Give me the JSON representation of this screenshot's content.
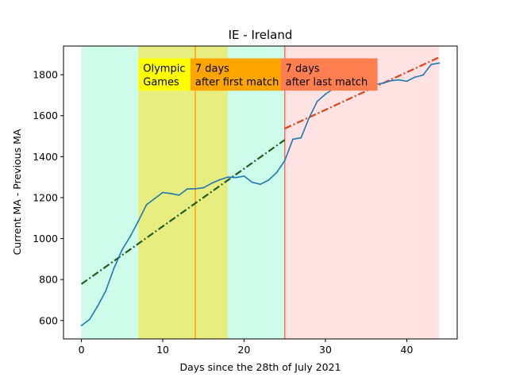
{
  "chart_data": {
    "type": "line",
    "title": "IE - Ireland",
    "xlabel": "Days since the 28th of July 2021",
    "ylabel": "Current MA - Previous MA",
    "xlim": [
      -2.2,
      46.2
    ],
    "ylim": [
      510,
      1940
    ],
    "xticks": [
      0,
      10,
      20,
      30,
      40
    ],
    "yticks": [
      600,
      800,
      1000,
      1200,
      1400,
      1600,
      1800
    ],
    "grid": false,
    "series": [
      {
        "color": "#1f77b4",
        "x": [
          0,
          1,
          2,
          3,
          4,
          5,
          6,
          7,
          8,
          9,
          10,
          11,
          12,
          13,
          14,
          15,
          16,
          17,
          18,
          19,
          20,
          21,
          22,
          23,
          24,
          25,
          26,
          27,
          28,
          29,
          30,
          31,
          32,
          33,
          34,
          35,
          36,
          37,
          38,
          39,
          40,
          41,
          42,
          43,
          44
        ],
        "y": [
          575,
          605,
          670,
          745,
          855,
          945,
          1010,
          1085,
          1165,
          1195,
          1225,
          1220,
          1212,
          1242,
          1243,
          1248,
          1270,
          1287,
          1300,
          1298,
          1305,
          1275,
          1265,
          1285,
          1322,
          1380,
          1485,
          1492,
          1590,
          1670,
          1705,
          1732,
          1730,
          1725,
          1738,
          1748,
          1752,
          1758,
          1770,
          1775,
          1768,
          1788,
          1798,
          1850,
          1857
        ]
      }
    ],
    "trendlines": [
      {
        "color": "#1b5e20",
        "style": "dash-dot",
        "x": [
          0,
          25
        ],
        "y": [
          778,
          1482
        ]
      },
      {
        "color": "#e0401a",
        "style": "dash-dot",
        "x": [
          25,
          44
        ],
        "y": [
          1537,
          1885
        ]
      }
    ],
    "regions": [
      {
        "x": [
          0,
          7
        ],
        "color": "#c6fbe6",
        "opacity": 0.85
      },
      {
        "x": [
          7,
          18
        ],
        "color": "#e6ec77",
        "opacity": 0.95
      },
      {
        "x": [
          18,
          25
        ],
        "color": "#c6fbe6",
        "opacity": 0.85
      },
      {
        "x": [
          25,
          44
        ],
        "color": "#ffdcdc",
        "opacity": 0.8
      }
    ],
    "vlines": [
      {
        "x": 14,
        "color": "#ffa500"
      },
      {
        "x": 25,
        "color": "#f4726a"
      }
    ],
    "annotations": [
      {
        "x": 7,
        "y_top": 1880,
        "y_bottom": 1722,
        "x_end": 13.4,
        "bg": "#ffff00",
        "lines": [
          "Olympic",
          "Games"
        ]
      },
      {
        "x": 13.4,
        "y_top": 1880,
        "y_bottom": 1722,
        "x_end": 24.5,
        "bg": "#ffa500",
        "lines": [
          "7 days",
          "after first match"
        ]
      },
      {
        "x": 24.5,
        "y_top": 1880,
        "y_bottom": 1722,
        "x_end": 36.4,
        "bg": "#ff7f50",
        "lines": [
          "7 days",
          "after last match"
        ]
      }
    ]
  }
}
